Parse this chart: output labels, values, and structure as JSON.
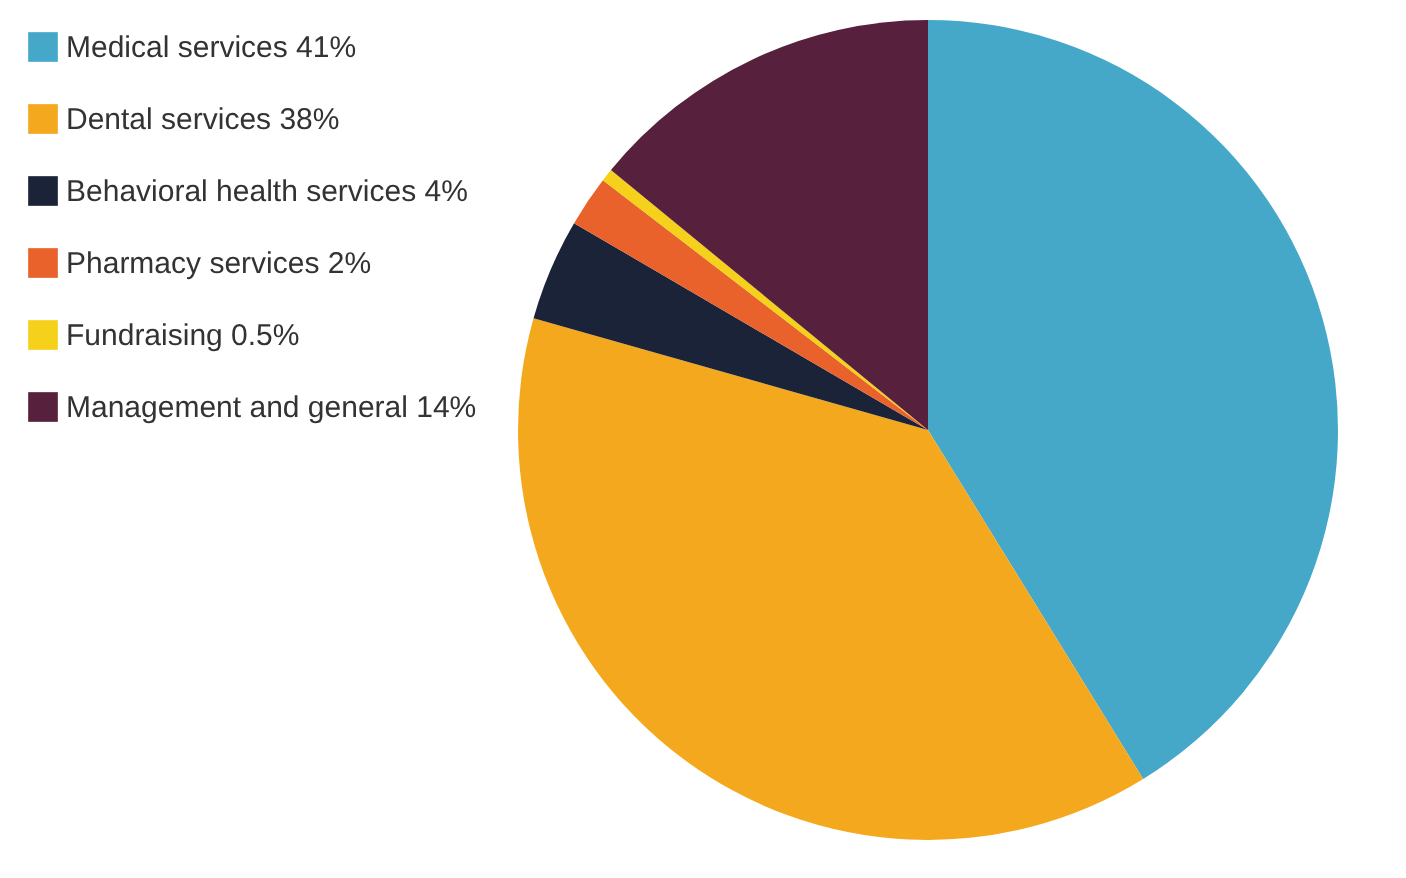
{
  "chart_data": {
    "type": "pie",
    "categories": [
      "Medical services 41%",
      "Dental services 38%",
      "Behavioral health services 4%",
      "Pharmacy services 2%",
      "Fundraising 0.5%",
      "Management and general 14%"
    ],
    "values": [
      41,
      38,
      4,
      2,
      0.5,
      14
    ],
    "colors": [
      "#46a8c9",
      "#f4a81d",
      "#1b2338",
      "#e9622b",
      "#f5d11c",
      "#57203d"
    ],
    "legend": "left"
  }
}
